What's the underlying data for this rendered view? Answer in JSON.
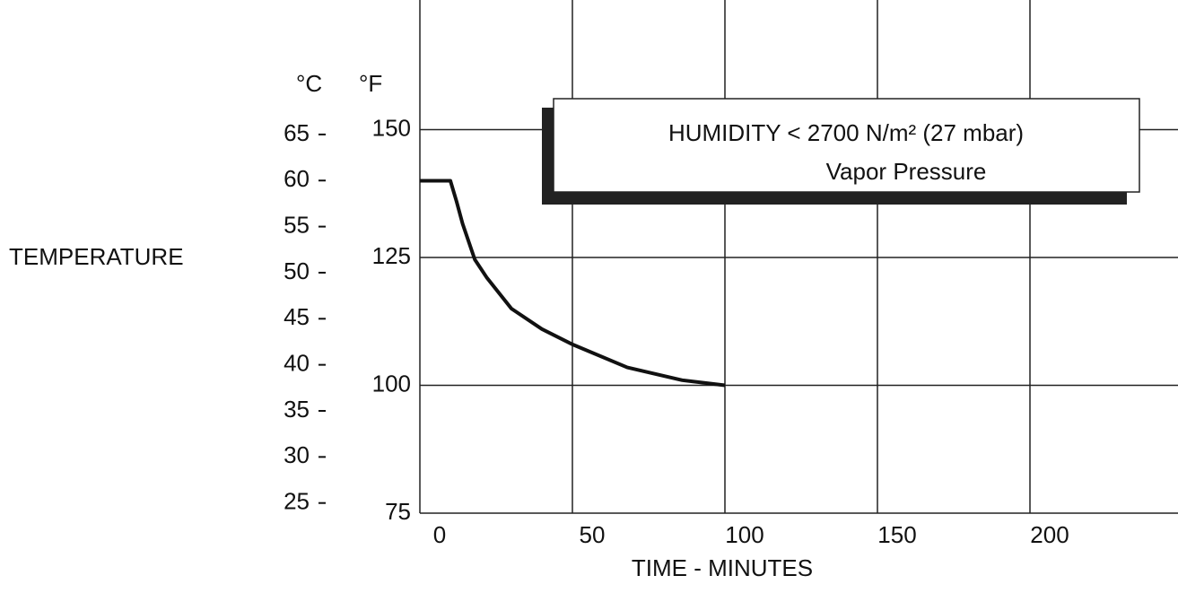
{
  "chart_data": {
    "type": "line",
    "ylabel": "TEMPERATURE",
    "xlabel": "TIME - MINUTES",
    "y_unit": "°F",
    "y2_unit": "°C",
    "xlim": [
      0,
      250
    ],
    "xticks": [
      0,
      50,
      100,
      150,
      200
    ],
    "ylim": [
      75,
      175
    ],
    "yticks": [
      75,
      100,
      125,
      150
    ],
    "y2lim": [
      23.9,
      79.4
    ],
    "y2ticks": [
      25,
      30,
      35,
      40,
      45,
      50,
      55,
      60,
      65
    ],
    "grid": true,
    "x": [
      0,
      10,
      12,
      14,
      18,
      22,
      30,
      40,
      50,
      68,
      86,
      100
    ],
    "series": [
      {
        "color": "#111111",
        "values": [
          140,
          140,
          136,
          131.6,
          124.6,
          121,
          115,
          111,
          108,
          103.5,
          101,
          100
        ]
      }
    ],
    "annotation": {
      "text": "HUMIDITY < 2700 N/m² (27 mbar)",
      "subtext": "Vapor Pressure"
    }
  }
}
